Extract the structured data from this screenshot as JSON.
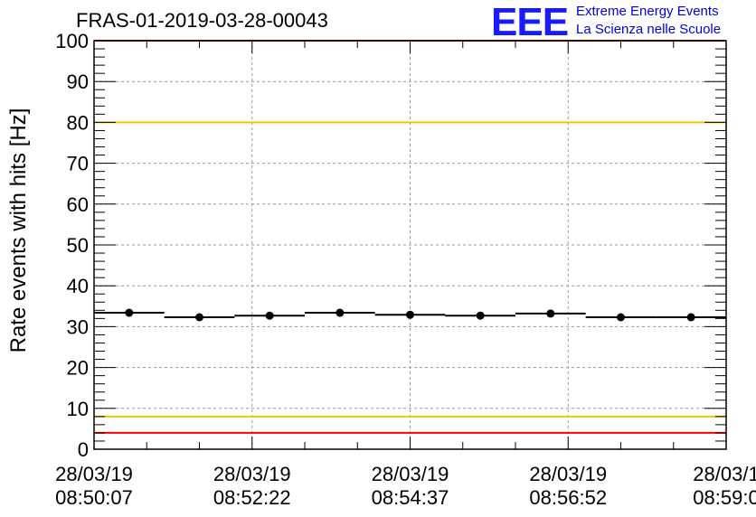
{
  "header": {
    "run_title": "FRAS-01-2019-03-28-00043",
    "logo_mark": "EEE",
    "logo_line1": "Extreme Energy Events",
    "logo_line2": "La Scienza nelle Scuole"
  },
  "chart_data": {
    "type": "scatter",
    "title": "FRAS-01-2019-03-28-00043",
    "ylabel": "Rate events with hits [Hz]",
    "xlabel": "",
    "ylim": [
      0,
      100
    ],
    "yticks": [
      0,
      10,
      20,
      30,
      40,
      50,
      60,
      70,
      80,
      90,
      100
    ],
    "xlim_seconds": [
      0,
      540
    ],
    "xticks": [
      {
        "s": 0,
        "date": "28/03/19",
        "time": "08:50:07"
      },
      {
        "s": 135,
        "date": "28/03/19",
        "time": "08:52:22"
      },
      {
        "s": 270,
        "date": "28/03/19",
        "time": "08:54:37"
      },
      {
        "s": 405,
        "date": "28/03/19",
        "time": "08:56:52"
      },
      {
        "s": 540,
        "date": "28/03/1",
        "time": "08:59:0"
      }
    ],
    "grid": true,
    "series": [
      {
        "points": [
          {
            "x": 30,
            "y": 33.4
          },
          {
            "x": 90,
            "y": 32.3
          },
          {
            "x": 150,
            "y": 32.7
          },
          {
            "x": 210,
            "y": 33.4
          },
          {
            "x": 270,
            "y": 32.9
          },
          {
            "x": 330,
            "y": 32.7
          },
          {
            "x": 390,
            "y": 33.2
          },
          {
            "x": 450,
            "y": 32.3
          },
          {
            "x": 510,
            "y": 32.3
          }
        ],
        "bin_half_width": 30,
        "color": "#000000"
      }
    ],
    "reference_lines": [
      {
        "y": 100,
        "color": "#ff0000"
      },
      {
        "y": 80,
        "color": "#f0c800"
      },
      {
        "y": 8,
        "color": "#f0c800"
      },
      {
        "y": 4,
        "color": "#ff0000"
      }
    ]
  }
}
